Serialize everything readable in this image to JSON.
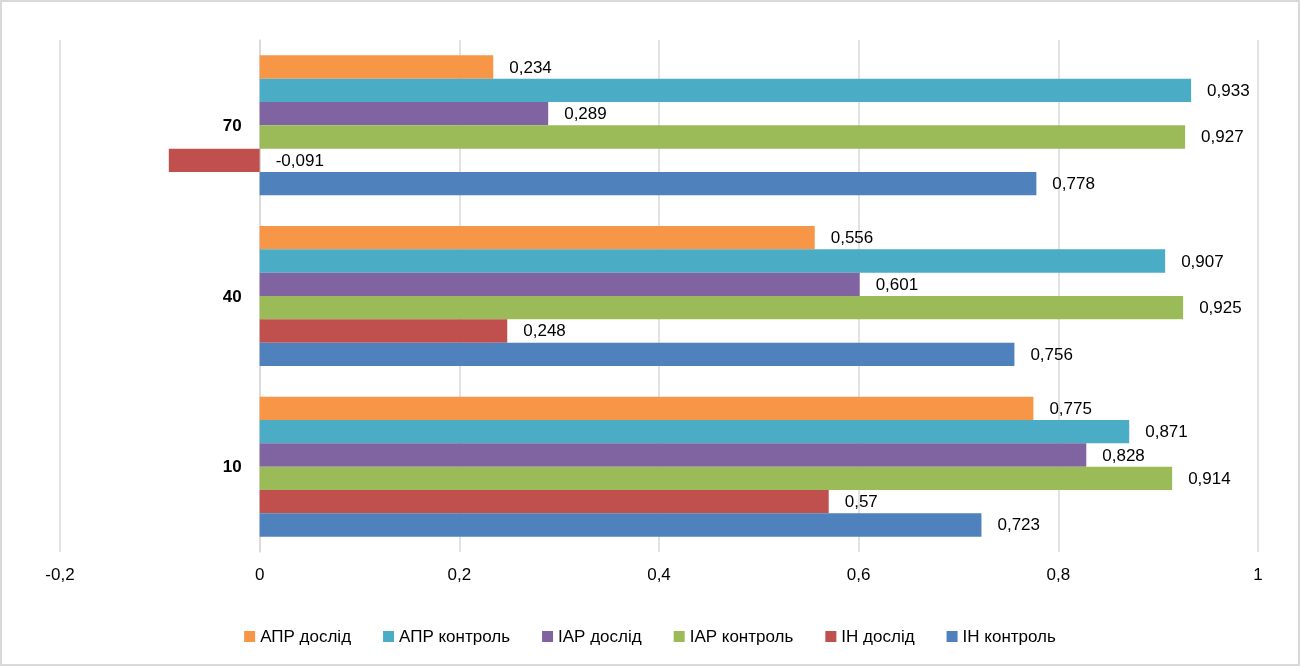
{
  "chart_data": {
    "type": "bar",
    "orientation": "horizontal",
    "categories": [
      "70",
      "40",
      "10"
    ],
    "series": [
      {
        "name": "АПР дослід",
        "color": "#f79646",
        "values": [
          0.234,
          0.556,
          0.775
        ],
        "value_labels": [
          "0,234",
          "0,556",
          "0,775"
        ]
      },
      {
        "name": "АПР контроль",
        "color": "#4bacc6",
        "values": [
          0.933,
          0.907,
          0.871
        ],
        "value_labels": [
          "0,933",
          "0,907",
          "0,871"
        ]
      },
      {
        "name": "ІАР дослід",
        "color": "#8064a2",
        "values": [
          0.289,
          0.601,
          0.828
        ],
        "value_labels": [
          "0,289",
          "0,601",
          "0,828"
        ]
      },
      {
        "name": "ІАР контроль",
        "color": "#9bbb59",
        "values": [
          0.927,
          0.925,
          0.914
        ],
        "value_labels": [
          "0,927",
          "0,925",
          "0,914"
        ]
      },
      {
        "name": "ІН дослід",
        "color": "#c0504d",
        "values": [
          -0.091,
          0.248,
          0.57
        ],
        "value_labels": [
          "-0,091",
          "0,248",
          "0,57"
        ]
      },
      {
        "name": "ІН контроль",
        "color": "#4f81bd",
        "values": [
          0.778,
          0.756,
          0.723
        ],
        "value_labels": [
          "0,778",
          "0,756",
          "0,723"
        ]
      }
    ],
    "xlim": [
      -0.2,
      1
    ],
    "xticks": [
      {
        "value": -0.2,
        "label": "-0,2"
      },
      0,
      {
        "value": 0.2,
        "label": "0,2"
      },
      {
        "value": 0.4,
        "label": "0,4"
      },
      {
        "value": 0.6,
        "label": "0,6"
      },
      {
        "value": 0.8,
        "label": "0,8"
      },
      1
    ],
    "grid": "x",
    "legend": "bottom"
  }
}
